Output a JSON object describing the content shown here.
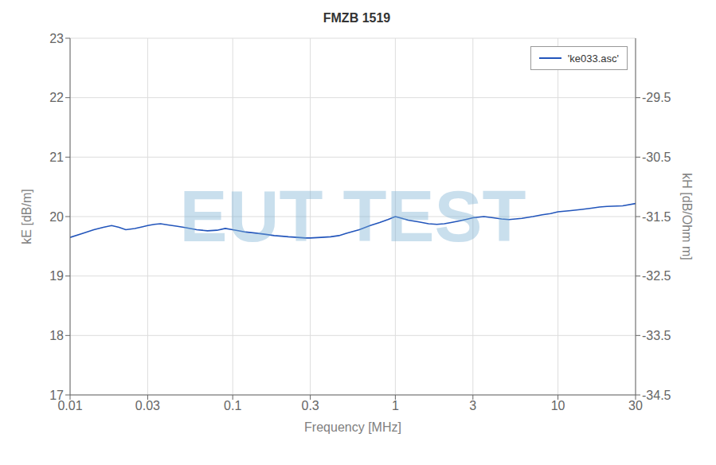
{
  "chart_data": {
    "type": "line",
    "title": "FMZB 1519",
    "x_label": "Frequency [MHz]",
    "y_label": "kE [dB/m]",
    "y2_label": "kH [dB/Ohm m]",
    "log": "x",
    "grid": true,
    "legend": "upper right",
    "annotations": [
      {
        "text": "EUT TEST",
        "color": "#7ab0d4"
      }
    ],
    "xlim": [
      0.01,
      30
    ],
    "xticks": [
      0.01,
      0.03,
      0.1,
      0.3,
      1,
      3,
      10,
      30
    ],
    "ylim": [
      17,
      23
    ],
    "yticks": [
      17,
      18,
      19,
      20,
      21,
      22,
      23
    ],
    "y2lim": [
      -34.5,
      -28.5
    ],
    "y2ticks": [
      -34.5,
      -33.5,
      -32.5,
      -31.5,
      -30.5,
      -29.5
    ],
    "x": [
      0.01,
      0.012,
      0.014,
      0.016,
      0.018,
      0.02,
      0.022,
      0.025,
      0.028,
      0.03,
      0.033,
      0.036,
      0.04,
      0.045,
      0.05,
      0.055,
      0.06,
      0.07,
      0.08,
      0.09,
      0.1,
      0.11,
      0.12,
      0.14,
      0.16,
      0.18,
      0.2,
      0.22,
      0.25,
      0.28,
      0.3,
      0.35,
      0.4,
      0.45,
      0.5,
      0.6,
      0.7,
      0.8,
      0.9,
      1.0,
      1.1,
      1.2,
      1.4,
      1.6,
      1.8,
      2.0,
      2.2,
      2.5,
      2.8,
      3.0,
      3.5,
      4.0,
      4.5,
      5.0,
      6.0,
      7.0,
      8.0,
      9.0,
      10.0,
      12.0,
      14.0,
      16.0,
      18.0,
      20.0,
      25.0,
      30.0
    ],
    "series": [
      {
        "name": "'ke033.asc'",
        "color": "#2255bb",
        "values": [
          19.65,
          19.72,
          19.78,
          19.82,
          19.85,
          19.82,
          19.78,
          19.8,
          19.83,
          19.85,
          19.87,
          19.88,
          19.86,
          19.84,
          19.82,
          19.8,
          19.78,
          19.76,
          19.77,
          19.8,
          19.78,
          19.76,
          19.74,
          19.72,
          19.7,
          19.68,
          19.67,
          19.66,
          19.65,
          19.64,
          19.64,
          19.65,
          19.66,
          19.68,
          19.72,
          19.78,
          19.85,
          19.9,
          19.95,
          20.0,
          19.97,
          19.94,
          19.91,
          19.88,
          19.87,
          19.88,
          19.9,
          19.93,
          19.96,
          19.98,
          20.0,
          19.98,
          19.96,
          19.95,
          19.97,
          20.0,
          20.03,
          20.05,
          20.08,
          20.1,
          20.12,
          20.14,
          20.16,
          20.17,
          20.18,
          20.22
        ]
      }
    ]
  }
}
